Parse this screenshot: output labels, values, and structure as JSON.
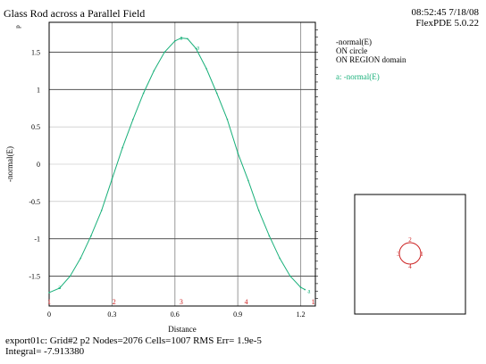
{
  "header": {
    "title": "Glass Rod across a Parallel Field",
    "time": "08:52:45 7/18/08",
    "version": "FlexPDE 5.0.22"
  },
  "legend": {
    "lines": [
      "-normal(E)",
      "ON circle",
      "ON REGION domain"
    ],
    "series_label": "a: -normal(E)"
  },
  "footer": {
    "line1": "export01c:  Grid#2  p2  Nodes=2076 Cells=1007 RMS Err= 1.9e-5",
    "line2": "Integral= -7.913380"
  },
  "colors": {
    "series": "#19b07a",
    "marker": "#cc2222",
    "grid": "#999999"
  },
  "chart_data": {
    "type": "line",
    "title": "Glass Rod across a Parallel Field",
    "xlabel": "Distance",
    "ylabel": "-normal(E)",
    "y_top_symbol": "p",
    "xlim": [
      0,
      1.27
    ],
    "ylim": [
      -1.9,
      1.9
    ],
    "x_ticks": [
      0,
      0.3,
      0.6,
      0.9,
      1.2
    ],
    "x_tick_labels": [
      "0",
      "0.3",
      "0.6",
      "0.9",
      "1.2"
    ],
    "y_ticks": [
      -1.5,
      -1,
      -0.5,
      0,
      0.5,
      1,
      1.5
    ],
    "y_tick_labels": [
      "-1.5",
      "-1",
      "-0.5",
      "0",
      "0.5",
      "1",
      "1.5"
    ],
    "grid": true,
    "legend_position": "right",
    "boundary_markers": [
      {
        "label": "1",
        "x": 0
      },
      {
        "label": "2",
        "x": 0.31
      },
      {
        "label": "3",
        "x": 0.63
      },
      {
        "label": "4",
        "x": 0.94
      },
      {
        "label": "1",
        "x": 1.26
      }
    ],
    "series": [
      {
        "name": "a",
        "label_points": [
          {
            "x": 0.05,
            "y": -1.65
          },
          {
            "x": 0.63,
            "y": 1.69
          },
          {
            "x": 0.71,
            "y": 1.56
          },
          {
            "x": 1.24,
            "y": -1.7
          }
        ],
        "x": [
          0,
          0.05,
          0.1,
          0.15,
          0.2,
          0.25,
          0.3,
          0.35,
          0.4,
          0.45,
          0.5,
          0.55,
          0.6,
          0.63,
          0.66,
          0.7,
          0.75,
          0.8,
          0.85,
          0.9,
          0.95,
          1.0,
          1.05,
          1.1,
          1.15,
          1.2,
          1.22
        ],
        "values": [
          -1.72,
          -1.66,
          -1.5,
          -1.26,
          -0.96,
          -0.62,
          -0.2,
          0.22,
          0.6,
          0.95,
          1.25,
          1.5,
          1.65,
          1.69,
          1.68,
          1.55,
          1.28,
          0.95,
          0.6,
          0.15,
          -0.22,
          -0.62,
          -0.96,
          -1.26,
          -1.5,
          -1.65,
          -1.68
        ]
      }
    ],
    "inset": {
      "type": "diagram",
      "markers": [
        "2",
        "3",
        "4",
        "1"
      ]
    }
  }
}
